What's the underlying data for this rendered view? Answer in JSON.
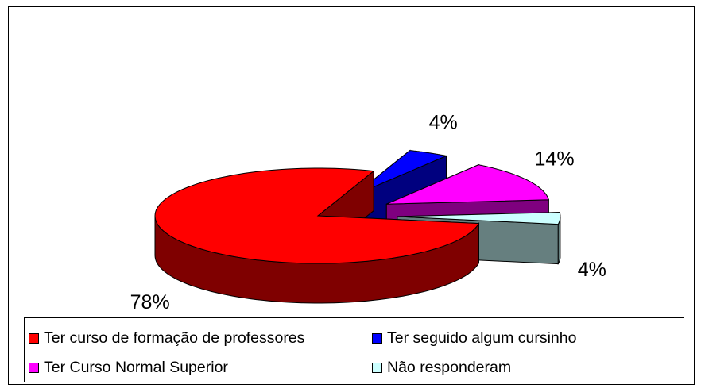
{
  "chart_data": {
    "type": "pie",
    "categories": [
      "Ter curso de formação de professores",
      "Ter seguido algum cursinho",
      "Ter Curso Normal Superior",
      "Não responderam"
    ],
    "values": [
      78,
      4,
      14,
      4
    ],
    "value_labels": [
      "78%",
      "4%",
      "14%",
      "4%"
    ],
    "colors": [
      "#ff0000",
      "#0000ff",
      "#ff00ff",
      "#ccffff"
    ],
    "legend": "bottom"
  }
}
